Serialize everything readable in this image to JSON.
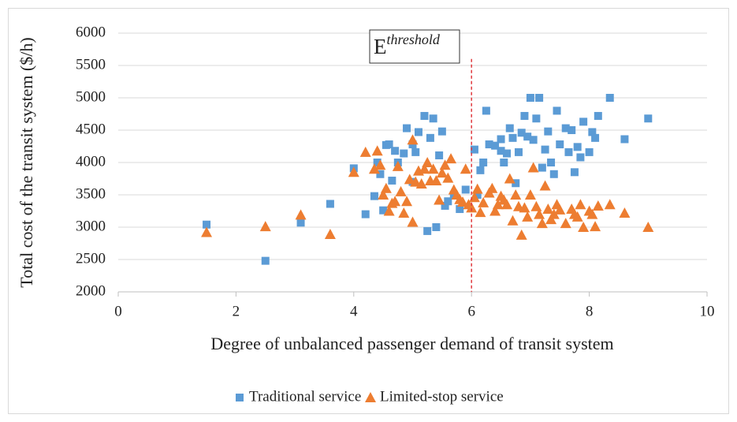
{
  "chart_data": {
    "type": "scatter",
    "xlabel": "Degree of unbalanced passenger demand of transit system",
    "ylabel": "Total cost of the transit system ($/h)",
    "xlim": [
      0,
      10
    ],
    "xticks": [
      0,
      2,
      4,
      6,
      8,
      10
    ],
    "ylim": [
      2000,
      6000
    ],
    "yticks": [
      2000,
      2500,
      3000,
      3500,
      4000,
      4500,
      5000,
      5500,
      6000
    ],
    "grid": true,
    "legend": "bottom",
    "annotation": {
      "text": "E",
      "superscript": "threshold",
      "x": 6,
      "y_top": 5600,
      "color": "#e0393e"
    },
    "series": [
      {
        "name": "Traditional service",
        "color": "#5b9bd5",
        "marker": "square",
        "x": [
          1.5,
          2.5,
          3.1,
          3.6,
          4.0,
          4.2,
          4.35,
          4.4,
          4.45,
          4.5,
          4.55,
          4.6,
          4.7,
          4.75,
          4.85,
          4.9,
          4.65,
          5.0,
          5.05,
          5.1,
          5.2,
          5.3,
          5.35,
          5.0,
          5.25,
          5.4,
          5.45,
          5.5,
          5.55,
          5.6,
          5.7,
          5.8,
          5.9,
          6.05,
          6.1,
          6.15,
          6.2,
          6.25,
          6.3,
          6.4,
          6.5,
          6.5,
          6.55,
          6.6,
          6.65,
          6.7,
          6.8,
          6.85,
          6.9,
          6.95,
          7.0,
          7.05,
          7.1,
          7.15,
          7.2,
          7.25,
          7.3,
          7.35,
          7.4,
          7.45,
          7.5,
          7.6,
          7.65,
          7.7,
          7.75,
          7.8,
          7.85,
          7.9,
          8.0,
          8.05,
          8.1,
          8.15,
          8.35,
          8.6,
          9.0,
          6.75
        ],
        "values": [
          3040,
          2480,
          3070,
          3360,
          3910,
          3200,
          3480,
          4000,
          3820,
          3260,
          4270,
          4280,
          4180,
          4000,
          4140,
          4530,
          3720,
          4280,
          4160,
          4470,
          4720,
          4380,
          4680,
          3700,
          2940,
          3000,
          4110,
          4480,
          3330,
          3400,
          3500,
          3280,
          3580,
          4200,
          3500,
          3880,
          4000,
          4800,
          4280,
          4260,
          4180,
          4360,
          4000,
          4140,
          4530,
          4380,
          4160,
          4460,
          4720,
          4400,
          5000,
          4350,
          4680,
          5000,
          3920,
          4200,
          4480,
          4000,
          3820,
          4800,
          4280,
          4530,
          4160,
          4500,
          3850,
          4240,
          4080,
          4630,
          4160,
          4470,
          4380,
          4720,
          5000,
          4360,
          4680,
          3680
        ]
      },
      {
        "name": "Limited-stop service",
        "color": "#ed7d31",
        "marker": "triangle",
        "x": [
          1.5,
          2.5,
          3.1,
          3.6,
          4.0,
          4.2,
          4.35,
          4.4,
          4.45,
          4.5,
          4.55,
          4.6,
          4.65,
          4.7,
          4.75,
          4.8,
          4.85,
          4.9,
          4.95,
          5.0,
          5.0,
          5.05,
          5.1,
          5.15,
          5.2,
          5.25,
          5.3,
          5.35,
          5.4,
          5.45,
          5.5,
          5.55,
          5.6,
          5.65,
          5.7,
          5.75,
          5.8,
          5.85,
          5.9,
          5.95,
          6.0,
          6.05,
          6.1,
          6.15,
          6.2,
          6.3,
          6.35,
          6.4,
          6.45,
          6.5,
          6.55,
          6.6,
          6.65,
          6.7,
          6.75,
          6.8,
          6.85,
          6.9,
          6.95,
          7.0,
          7.05,
          7.1,
          7.15,
          7.2,
          7.25,
          7.3,
          7.35,
          7.4,
          7.45,
          7.5,
          7.6,
          7.7,
          7.75,
          7.8,
          7.85,
          7.9,
          8.0,
          8.05,
          8.1,
          8.15,
          8.35,
          8.6,
          9.0
        ],
        "values": [
          2920,
          3010,
          3190,
          2890,
          3850,
          4160,
          3900,
          4180,
          3960,
          3500,
          3600,
          3250,
          3370,
          3400,
          3940,
          3550,
          3220,
          3400,
          3740,
          3080,
          4350,
          3700,
          3870,
          3670,
          3900,
          4000,
          3720,
          3900,
          3720,
          3420,
          3840,
          3960,
          3760,
          4060,
          3580,
          3500,
          3430,
          3390,
          3900,
          3350,
          3300,
          3460,
          3590,
          3230,
          3380,
          3530,
          3600,
          3250,
          3350,
          3480,
          3420,
          3350,
          3750,
          3100,
          3500,
          3320,
          2880,
          3300,
          3160,
          3500,
          3920,
          3320,
          3200,
          3060,
          3640,
          3280,
          3120,
          3200,
          3350,
          3270,
          3060,
          3280,
          3200,
          3160,
          3350,
          3000,
          3250,
          3200,
          3010,
          3330,
          3350,
          3220,
          3000
        ]
      }
    ]
  }
}
